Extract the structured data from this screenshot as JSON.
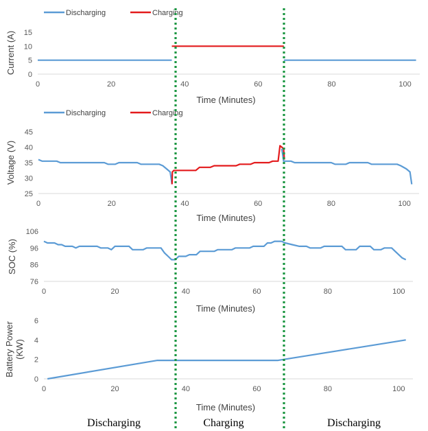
{
  "colors": {
    "discharging": "#5b9bd5",
    "charging": "#e31a1c",
    "divider": "#1a9641",
    "axis": "#d9d9d9"
  },
  "phase_labels": [
    "Discharging",
    "Charging",
    "Discharging"
  ],
  "chart_data": [
    {
      "type": "line",
      "ylabel": "Current (A)",
      "xlabel": "Time (Minutes)",
      "xlim": [
        0,
        104
      ],
      "ylim": [
        0,
        15
      ],
      "xticks": [
        0,
        20,
        40,
        60,
        80,
        100
      ],
      "yticks": [
        0,
        5,
        10,
        15
      ],
      "legend": {
        "position": "top-left",
        "entries": [
          "Discharging",
          "Charging"
        ]
      },
      "series": [
        {
          "name": "Discharging",
          "color": "#5b9bd5",
          "segments": [
            [
              [
                0,
                5
              ],
              [
                36.5,
                5
              ]
            ],
            [
              [
                67,
                5
              ],
              [
                103,
                5
              ]
            ]
          ]
        },
        {
          "name": "Charging",
          "color": "#e31a1c",
          "segments": [
            [
              [
                36.5,
                10
              ],
              [
                67,
                10
              ]
            ]
          ]
        }
      ]
    },
    {
      "type": "line",
      "ylabel": "Voltage (V)",
      "xlabel": "Time (Minutes)",
      "xlim": [
        0,
        104
      ],
      "ylim": [
        25,
        45
      ],
      "xticks": [
        0,
        20,
        40,
        60,
        80,
        100
      ],
      "yticks": [
        25,
        30,
        35,
        40,
        45
      ],
      "legend": {
        "position": "top-left",
        "entries": [
          "Discharging",
          "Charging"
        ]
      },
      "series": [
        {
          "name": "Discharging",
          "color": "#5b9bd5",
          "segments": [
            [
              [
                0,
                36
              ],
              [
                1,
                35.5
              ],
              [
                5,
                35.5
              ],
              [
                6,
                35
              ],
              [
                10,
                35
              ],
              [
                18,
                35
              ],
              [
                19,
                34.5
              ],
              [
                21,
                34.5
              ],
              [
                22,
                35
              ],
              [
                27,
                35
              ],
              [
                28,
                34.5
              ],
              [
                33,
                34.5
              ],
              [
                34,
                34
              ],
              [
                35,
                33
              ],
              [
                36,
                32
              ],
              [
                36.5,
                28
              ]
            ],
            [
              [
                66.5,
                39.5
              ],
              [
                67,
                35.5
              ],
              [
                69,
                35.5
              ],
              [
                70,
                35
              ],
              [
                80,
                35
              ],
              [
                81,
                34.5
              ],
              [
                84,
                34.5
              ],
              [
                85,
                35
              ],
              [
                90,
                35
              ],
              [
                91,
                34.5
              ],
              [
                98,
                34.5
              ],
              [
                99,
                34
              ],
              [
                100.5,
                33
              ],
              [
                101.5,
                32
              ],
              [
                102,
                28
              ]
            ]
          ]
        },
        {
          "name": "Charging",
          "color": "#e31a1c",
          "segments": [
            [
              [
                36.5,
                28
              ],
              [
                36.6,
                32
              ],
              [
                37,
                32.5
              ],
              [
                43,
                32.5
              ],
              [
                44,
                33.5
              ],
              [
                47,
                33.5
              ],
              [
                48,
                34
              ],
              [
                54,
                34
              ],
              [
                55,
                34.5
              ],
              [
                58,
                34.5
              ],
              [
                59,
                35
              ],
              [
                63,
                35
              ],
              [
                64,
                35.5
              ],
              [
                65.5,
                35.5
              ],
              [
                66,
                40.5
              ],
              [
                66.5,
                40
              ],
              [
                67,
                39.5
              ],
              [
                67.2,
                36
              ]
            ]
          ]
        }
      ]
    },
    {
      "type": "line",
      "ylabel": "SOC (%)",
      "xlabel": "Time (Minutes)",
      "xlim": [
        0,
        104
      ],
      "ylim": [
        76,
        106
      ],
      "xticks": [
        0,
        20,
        40,
        60,
        80,
        100
      ],
      "yticks": [
        76,
        86,
        96,
        106
      ],
      "series": [
        {
          "name": "",
          "color": "#5b9bd5",
          "segments": [
            [
              [
                0,
                100
              ],
              [
                1,
                99
              ],
              [
                3,
                99
              ],
              [
                4,
                98
              ],
              [
                5,
                98
              ],
              [
                6,
                97
              ],
              [
                8,
                97
              ],
              [
                9,
                96
              ],
              [
                10,
                97
              ],
              [
                15,
                97
              ],
              [
                16,
                96
              ],
              [
                18,
                96
              ],
              [
                19,
                95
              ],
              [
                20,
                97
              ],
              [
                24,
                97
              ],
              [
                25,
                95
              ],
              [
                28,
                95
              ],
              [
                29,
                96
              ],
              [
                33,
                96
              ],
              [
                34,
                93
              ],
              [
                35,
                91
              ],
              [
                36,
                89
              ],
              [
                37,
                89
              ],
              [
                38,
                91
              ],
              [
                40,
                91
              ],
              [
                41,
                92
              ],
              [
                43,
                92
              ],
              [
                44,
                94
              ],
              [
                48,
                94
              ],
              [
                49,
                95
              ],
              [
                53,
                95
              ],
              [
                54,
                96
              ],
              [
                58,
                96
              ],
              [
                59,
                97
              ],
              [
                62,
                97
              ],
              [
                63,
                99
              ],
              [
                64,
                99
              ],
              [
                65,
                100
              ],
              [
                67,
                100
              ],
              [
                68,
                99
              ],
              [
                70,
                98
              ],
              [
                72,
                97
              ],
              [
                74,
                97
              ],
              [
                75,
                96
              ],
              [
                78,
                96
              ],
              [
                79,
                97
              ],
              [
                84,
                97
              ],
              [
                85,
                95
              ],
              [
                88,
                95
              ],
              [
                89,
                97
              ],
              [
                92,
                97
              ],
              [
                93,
                95
              ],
              [
                95,
                95
              ],
              [
                96,
                96
              ],
              [
                98,
                96
              ],
              [
                99,
                94
              ],
              [
                100,
                92
              ],
              [
                101,
                90
              ],
              [
                102,
                89
              ]
            ]
          ]
        }
      ]
    },
    {
      "type": "line",
      "ylabel": "Battery Power (KW)",
      "xlabel": "Time (Minutes)",
      "xlim": [
        0,
        104
      ],
      "ylim": [
        0,
        6
      ],
      "xticks": [
        0,
        20,
        40,
        60,
        80,
        100
      ],
      "yticks": [
        0,
        2,
        4,
        6
      ],
      "series": [
        {
          "name": "",
          "color": "#5b9bd5",
          "segments": [
            [
              [
                1,
                0
              ],
              [
                32,
                1.9
              ],
              [
                66,
                1.9
              ],
              [
                102,
                4
              ]
            ]
          ]
        }
      ]
    }
  ]
}
